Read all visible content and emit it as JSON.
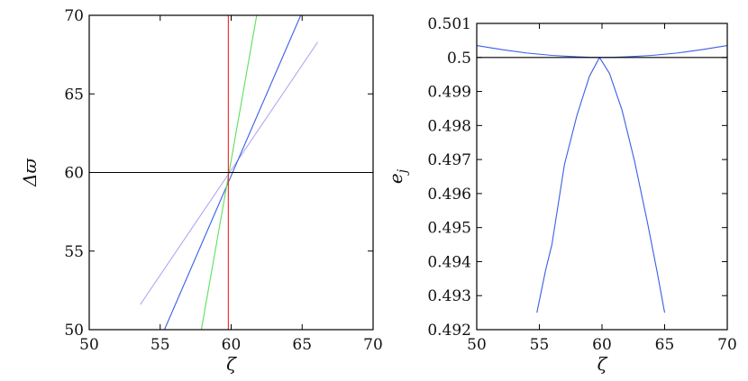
{
  "chart_data": [
    {
      "type": "line",
      "xlabel": "ζ",
      "ylabel": "Δϖ",
      "xlim": [
        50,
        70
      ],
      "ylim": [
        50,
        70
      ],
      "xticks": [
        "50",
        "55",
        "60",
        "65",
        "70"
      ],
      "yticks": [
        "50",
        "55",
        "60",
        "65",
        "70"
      ],
      "grid": false,
      "series": [
        {
          "color": "#b0a8f0",
          "x": [
            53.6,
            66.1
          ],
          "y": [
            51.6,
            68.3
          ]
        },
        {
          "color": "#3a5ee6",
          "x": [
            55.3,
            64.9
          ],
          "y": [
            50.0,
            70.0
          ]
        },
        {
          "color": "#5de05d",
          "x": [
            57.9,
            61.8
          ],
          "y": [
            50.0,
            70.0
          ]
        },
        {
          "color": "#ee2222",
          "x": [
            59.8,
            59.8
          ],
          "y": [
            50.0,
            70.0
          ]
        },
        {
          "color": "#000000",
          "x": [
            50,
            70
          ],
          "y": [
            60,
            60
          ]
        }
      ]
    },
    {
      "type": "line",
      "xlabel": "ζ",
      "ylabel": "e_j",
      "xlim": [
        50,
        70
      ],
      "ylim": [
        0.492,
        0.501
      ],
      "xticks": [
        "50",
        "55",
        "60",
        "65",
        "70"
      ],
      "yticks": [
        "0.492",
        "0.493",
        "0.494",
        "0.495",
        "0.496",
        "0.497",
        "0.498",
        "0.499",
        "0.5",
        "0.501"
      ],
      "grid": false,
      "series": [
        {
          "color": "#3a5ee6",
          "x": [
            50,
            52,
            54,
            56,
            58,
            59,
            60,
            61,
            62,
            64,
            66,
            68,
            70
          ],
          "y": [
            0.50035,
            0.50023,
            0.50013,
            0.50006,
            0.50002,
            0.500005,
            0.5,
            0.500005,
            0.50002,
            0.50006,
            0.50013,
            0.50023,
            0.50035
          ]
        },
        {
          "color": "#3a5ee6",
          "x": [
            54.8,
            55.5,
            56,
            57,
            58,
            59,
            59.8,
            60.6,
            61.6,
            62.6,
            63.6,
            64.4,
            65.0
          ],
          "y": [
            0.4925,
            0.49375,
            0.4945,
            0.49685,
            0.4983,
            0.49945,
            0.5,
            0.49953,
            0.49845,
            0.49695,
            0.4952,
            0.4937,
            0.4925
          ]
        },
        {
          "color": "#000000",
          "x": [
            50,
            70
          ],
          "y": [
            0.5,
            0.5
          ]
        }
      ]
    }
  ]
}
